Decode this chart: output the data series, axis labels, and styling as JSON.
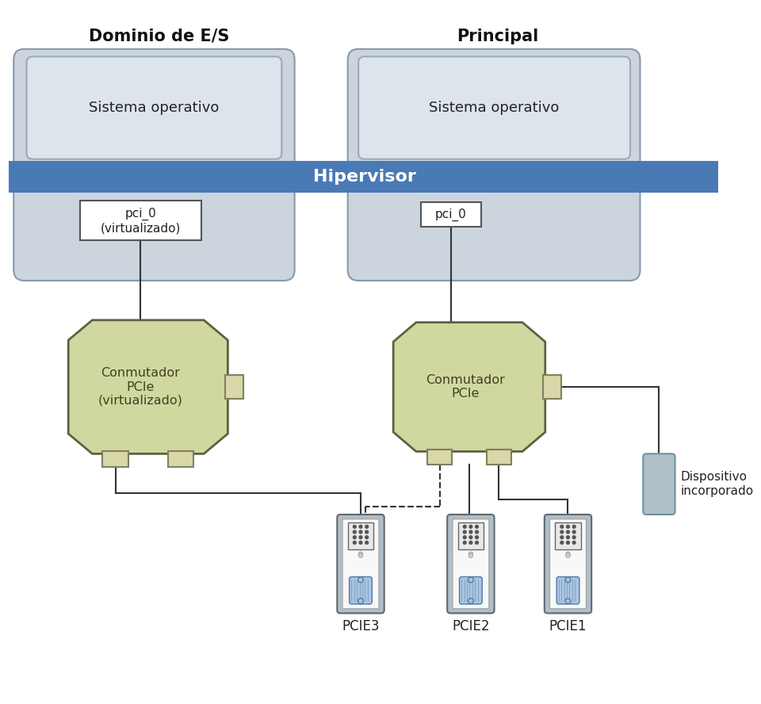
{
  "title_left": "Dominio de E/S",
  "title_right": "Principal",
  "hypervisor_text": "Hipervisor",
  "os_text": "Sistema operativo",
  "pci_left_text": "pci_0\n(virtualizado)",
  "pci_right_text": "pci_0",
  "switch_left_text": "Conmutador\nPCIe\n(virtualizado)",
  "switch_right_text": "Conmutador\nPCIe",
  "device_label": "Dispositivo\nincorporado",
  "pcie_labels": [
    "PCIE3",
    "PCIE2",
    "PCIE1"
  ],
  "bg_color": "#ffffff",
  "hypervisor_bg": "#4a7ab5",
  "hypervisor_text_color": "#ffffff",
  "domain_box_bg_top": "#c8d4de",
  "domain_box_bg_grad": "#d8e4ee",
  "domain_box_border": "#8899aa",
  "os_box_fill_top": "#e8eef4",
  "os_box_fill_bot": "#d0dce8",
  "os_box_border": "#9aaabb",
  "pci_box_bg": "#ffffff",
  "pci_box_border": "#555555",
  "switch_fill": "#d0d8a0",
  "switch_fill2": "#c0c890",
  "switch_border": "#606040",
  "switch_port_fill": "#d8d8a8",
  "switch_port_border": "#808060",
  "device_fill": "#b0c0c8",
  "device_border": "#7090a0",
  "pcie_outer_fill": "#b0bec8",
  "pcie_outer_border": "#606870",
  "pcie_inner_fill": "#f0f0f0",
  "pcie_conn_top_fill": "#e0e0e0",
  "pcie_conn_bot_fill": "#b0c8e0",
  "line_color": "#333333"
}
